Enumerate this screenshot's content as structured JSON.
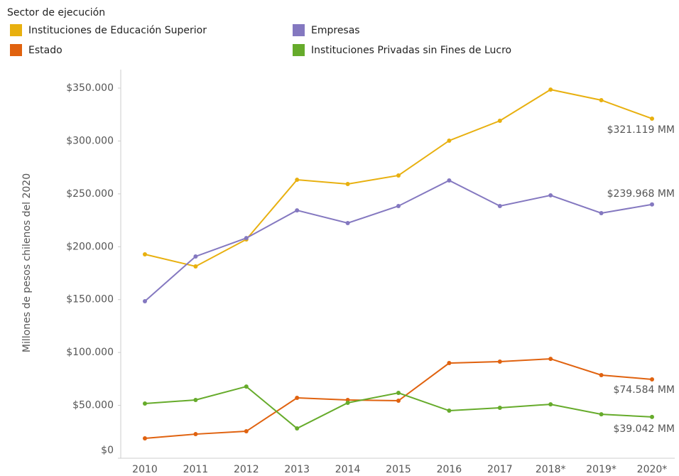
{
  "chart_data": {
    "type": "line",
    "legend_title": "Sector de ejecución",
    "y_label": "Millones de pesos chilenos del 2020",
    "categories": [
      "2010",
      "2011",
      "2012",
      "2013",
      "2014",
      "2015",
      "2016",
      "2017",
      "2018*",
      "2019*",
      "2020*"
    ],
    "series": [
      {
        "name": "Instituciones de Educación Superior",
        "color": "#e8b00f",
        "values": [
          192800,
          181400,
          206900,
          263300,
          259300,
          267400,
          300300,
          319100,
          348600,
          338600,
          321119
        ],
        "value_labels": [
          null,
          null,
          null,
          null,
          null,
          null,
          null,
          null,
          null,
          null,
          "$321.119 MM"
        ]
      },
      {
        "name": "Empresas",
        "color": "#8478c0",
        "values": [
          148500,
          190800,
          208200,
          234400,
          222400,
          238500,
          262700,
          238500,
          248600,
          231800,
          239968
        ],
        "value_labels": [
          null,
          null,
          null,
          null,
          null,
          null,
          null,
          null,
          null,
          null,
          "$239.968 MM"
        ]
      },
      {
        "name": "Estado",
        "color": "#e0620f",
        "values": [
          18800,
          22800,
          25500,
          57100,
          55100,
          54400,
          90000,
          91400,
          94000,
          78600,
          74584
        ],
        "value_labels": [
          null,
          null,
          null,
          null,
          null,
          null,
          null,
          null,
          null,
          null,
          "$74.584 MM"
        ]
      },
      {
        "name": "Instituciones Privadas sin Fines de Lucro",
        "color": "#66ab2b",
        "values": [
          51700,
          55100,
          67800,
          28200,
          52400,
          61800,
          45000,
          47700,
          51000,
          41600,
          39042
        ],
        "value_labels": [
          null,
          null,
          null,
          null,
          null,
          null,
          null,
          null,
          null,
          null,
          "$39.042 MM"
        ]
      }
    ],
    "ylim": [
      0,
      350000
    ],
    "yticks": [
      {
        "value": 0,
        "label": "$0"
      },
      {
        "value": 50000,
        "label": "$50.000"
      },
      {
        "value": 100000,
        "label": "$100.000"
      },
      {
        "value": 150000,
        "label": "$150.000"
      },
      {
        "value": 200000,
        "label": "$200.000"
      },
      {
        "value": 250000,
        "label": "$250.000"
      },
      {
        "value": 300000,
        "label": "$300.000"
      },
      {
        "value": 350000,
        "label": "$350.000"
      }
    ],
    "grid": false
  }
}
